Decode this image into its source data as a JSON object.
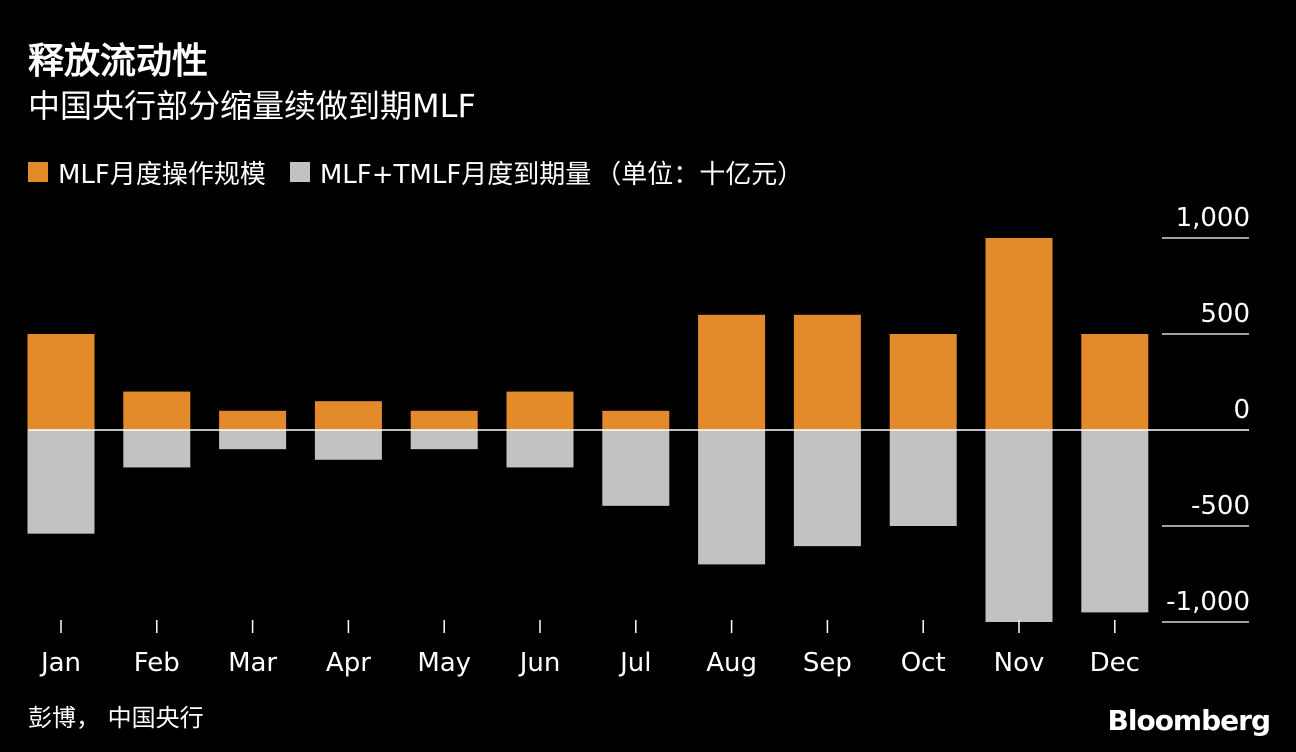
{
  "header": {
    "title": "释放流动性",
    "subtitle": "中国央行部分缩量续做到期MLF"
  },
  "legend": {
    "items": [
      {
        "label": "MLF月度操作规模"
      },
      {
        "label": "MLF+TMLF月度到期量"
      }
    ],
    "unit": "（单位：十亿元）"
  },
  "chart_data": {
    "type": "bar",
    "categories": [
      "Jan",
      "Feb",
      "Mar",
      "Apr",
      "May",
      "Jun",
      "Jul",
      "Aug",
      "Sep",
      "Oct",
      "Nov",
      "Dec"
    ],
    "series": [
      {
        "name": "MLF月度操作规模",
        "values": [
          500,
          200,
          100,
          150,
          100,
          200,
          100,
          600,
          600,
          500,
          1000,
          500
        ],
        "color": "#e38b2a"
      },
      {
        "name": "MLF+TMLF月度到期量",
        "values": [
          -540,
          -195,
          -100,
          -155,
          -100,
          -195,
          -395,
          -700,
          -605,
          -500,
          -1000,
          -950
        ],
        "color": "#c2c2c2"
      }
    ],
    "ylim": [
      -1000,
      1000
    ],
    "yticks": [
      1000,
      500,
      0,
      -500,
      -1000
    ],
    "ytick_labels": [
      "1,000",
      "500",
      "0",
      "-500",
      "-1,000"
    ],
    "grid": true,
    "legend_position": "top-left"
  },
  "footer": {
    "source": "彭博， 中国央行",
    "brand": "Bloomberg"
  }
}
